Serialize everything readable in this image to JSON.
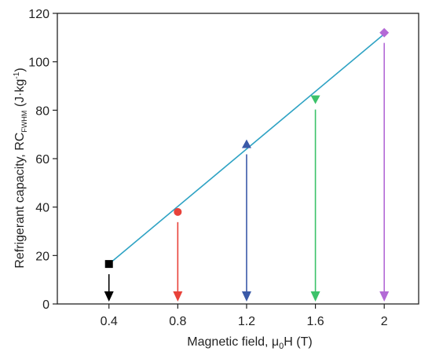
{
  "chart_data": {
    "type": "scatter",
    "xlabel_main": "Magnetic field, μ",
    "xlabel_sub": "0",
    "xlabel_end": "H (T)",
    "ylabel_main": "Refrigerant capacity, RC",
    "ylabel_sub": "FWHM",
    "ylabel_end": " (J·kg",
    "ylabel_sup": "-1",
    "ylabel_close": ")",
    "xlim": [
      0.1,
      2.2
    ],
    "ylim": [
      0,
      120
    ],
    "x_ticks": [
      0.4,
      0.8,
      1.2,
      1.6,
      2.0
    ],
    "x_tick_labels": [
      "0.4",
      "0.8",
      "1.2",
      "1.6",
      "2"
    ],
    "y_ticks": [
      0,
      20,
      40,
      60,
      80,
      100,
      120
    ],
    "y_tick_labels": [
      "0",
      "20",
      "40",
      "60",
      "80",
      "100",
      "120"
    ],
    "points": [
      {
        "x": 0.4,
        "y": 16.5,
        "marker": "square",
        "color": "#000000"
      },
      {
        "x": 0.8,
        "y": 38.0,
        "marker": "circle",
        "color": "#e8423a"
      },
      {
        "x": 1.2,
        "y": 66.0,
        "marker": "triangle-up",
        "color": "#3b5aa8"
      },
      {
        "x": 1.6,
        "y": 84.5,
        "marker": "triangle-down",
        "color": "#3cc26a"
      },
      {
        "x": 2.0,
        "y": 112.0,
        "marker": "diamond",
        "color": "#b36ad6"
      }
    ],
    "fit_line": {
      "x": [
        0.4,
        2.0
      ],
      "y": [
        16.5,
        111.5
      ],
      "color": "#2fa3c4"
    },
    "grid": false
  }
}
